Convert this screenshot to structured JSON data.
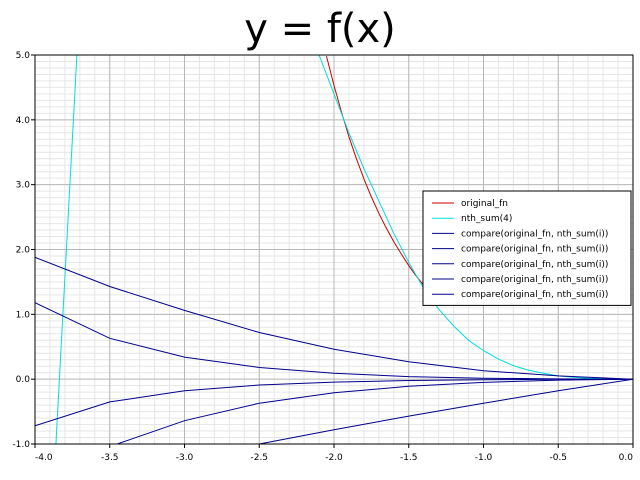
{
  "chart_data": {
    "type": "line",
    "title": "y = f(x)",
    "xlabel": "",
    "ylabel": "",
    "xlim": [
      -4.0,
      0.0
    ],
    "ylim": [
      -1.0,
      5.0
    ],
    "x_ticks": [
      "-4.0",
      "-3.5",
      "-3.0",
      "-2.5",
      "-2.0",
      "-1.5",
      "-1.0",
      "-0.5",
      "0.0"
    ],
    "y_ticks": [
      "-1.0",
      "0.0",
      "1.0",
      "2.0",
      "3.0",
      "4.0",
      "5.0"
    ],
    "grid": true,
    "legend_position": "right",
    "colors": {
      "original_fn": "#cc0000",
      "nth_sum": "#00dddd",
      "compare": "#00008b",
      "grid_major": "#b8b8b8",
      "grid_minor": "#e6e6e6"
    },
    "series": [
      {
        "name": "original_fn",
        "x": [
          -2.05,
          -2.0,
          -1.95,
          -1.9,
          -1.85,
          -1.8,
          -1.75,
          -1.7,
          -1.65,
          -1.6,
          -1.55,
          -1.5,
          -1.45,
          -1.4,
          -1.35,
          -1.3
        ],
        "y": [
          4.98,
          4.53,
          4.12,
          3.74,
          3.4,
          3.09,
          2.81,
          2.56,
          2.33,
          2.12,
          1.93,
          1.75,
          1.59,
          1.45,
          1.32,
          1.2
        ]
      },
      {
        "name": "nth_sum(4)",
        "x": [
          -3.86,
          -3.72,
          -3.5,
          -3.0,
          -2.5,
          -2.1,
          -2.0,
          -1.9,
          -1.8,
          -1.7,
          -1.6,
          -1.5,
          -1.4,
          -1.3,
          -1.2,
          -1.1,
          -1.0,
          -0.9,
          -0.8,
          -0.7,
          -0.6,
          -0.5,
          -0.4,
          -0.3,
          -0.2,
          -0.1,
          0.0
        ],
        "y": [
          -1.0,
          5.0,
          5.0,
          5.0,
          5.0,
          5.0,
          4.4,
          3.8,
          3.25,
          2.75,
          2.25,
          1.8,
          1.4,
          1.08,
          0.82,
          0.6,
          0.44,
          0.31,
          0.21,
          0.14,
          0.09,
          0.05,
          0.03,
          0.015,
          0.006,
          0.002,
          0.0
        ]
      },
      {
        "name": "compare(original_fn, nth_sum(i))",
        "x": [
          -4.0,
          -3.5,
          -3.0,
          -2.5,
          -2.0,
          -1.5,
          -1.0,
          -0.5,
          0.0
        ],
        "y": [
          1.88,
          1.43,
          1.06,
          0.72,
          0.46,
          0.27,
          0.13,
          0.05,
          0.0
        ]
      },
      {
        "name": "compare(original_fn, nth_sum(i))",
        "x": [
          -4.0,
          -3.5,
          -3.0,
          -2.5,
          -2.0,
          -1.5,
          -1.0,
          -0.5,
          0.0
        ],
        "y": [
          1.18,
          0.63,
          0.34,
          0.18,
          0.09,
          0.04,
          0.015,
          0.004,
          0.0
        ]
      },
      {
        "name": "compare(original_fn, nth_sum(i))",
        "x": [
          -4.0,
          -3.5,
          -3.0,
          -2.5,
          -2.0,
          -1.5,
          -1.0,
          -0.5,
          0.0
        ],
        "y": [
          -0.72,
          -0.35,
          -0.18,
          -0.09,
          -0.045,
          -0.02,
          -0.008,
          -0.002,
          0.0
        ]
      },
      {
        "name": "compare(original_fn, nth_sum(i))",
        "x": [
          -3.45,
          -3.0,
          -2.5,
          -2.0,
          -1.5,
          -1.0,
          -0.5,
          0.0
        ],
        "y": [
          -1.0,
          -0.64,
          -0.37,
          -0.21,
          -0.11,
          -0.05,
          -0.015,
          0.0
        ]
      },
      {
        "name": "compare(original_fn, nth_sum(i))",
        "x": [
          -2.5,
          -2.0,
          -1.5,
          -1.0,
          -0.5,
          0.0
        ],
        "y": [
          -1.0,
          -0.78,
          -0.57,
          -0.37,
          -0.18,
          0.0
        ]
      }
    ]
  }
}
